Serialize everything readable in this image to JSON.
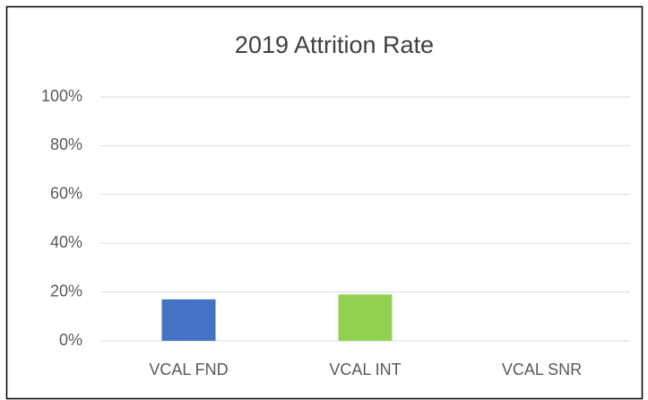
{
  "chart_data": {
    "type": "bar",
    "title": "2019 Attrition Rate",
    "categories": [
      "VCAL FND",
      "VCAL INT",
      "VCAL SNR"
    ],
    "values": [
      17,
      19,
      0
    ],
    "colors": [
      "#4472c4",
      "#92d050"
    ],
    "ylim": [
      0,
      100
    ],
    "yticks": [
      {
        "value": 0,
        "label": "0%"
      },
      {
        "value": 20,
        "label": "20%"
      },
      {
        "value": 40,
        "label": "40%"
      },
      {
        "value": 60,
        "label": "60%"
      },
      {
        "value": 80,
        "label": "80%"
      },
      {
        "value": 100,
        "label": "100%"
      }
    ],
    "grid": true
  }
}
